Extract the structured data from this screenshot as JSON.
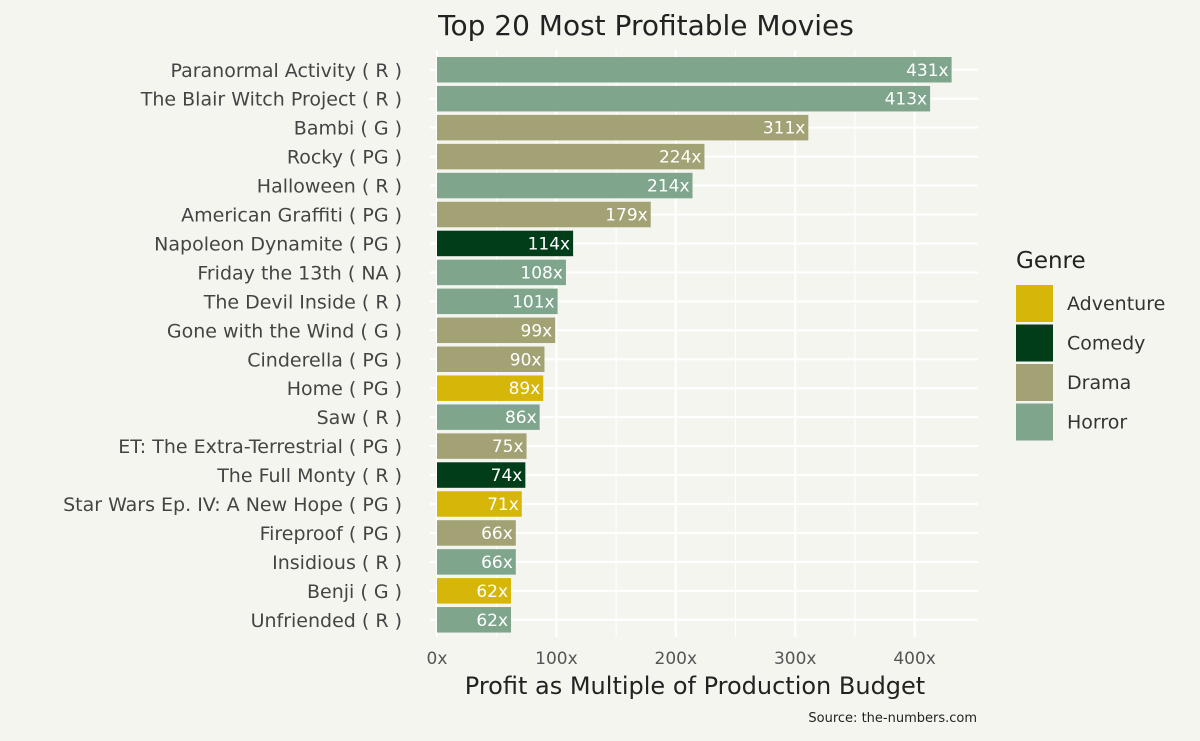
{
  "chart_data": {
    "type": "bar",
    "orientation": "horizontal",
    "title": "Top 20 Most Profitable Movies",
    "xlabel": "Profit as Multiple of Production Budget",
    "ylabel": "",
    "caption": "Source: the-numbers.com",
    "xlim": [
      0,
      450
    ],
    "x_ticks": [
      0,
      100,
      200,
      300,
      400
    ],
    "x_tick_labels": [
      "0x",
      "100x",
      "200x",
      "300x",
      "400x"
    ],
    "grid": true,
    "legend": {
      "title": "Genre",
      "placement": "right",
      "entries": [
        {
          "name": "Adventure",
          "color": "#d7b60a"
        },
        {
          "name": "Comedy",
          "color": "#003d18"
        },
        {
          "name": "Drama",
          "color": "#a2a275"
        },
        {
          "name": "Horror",
          "color": "#7fa68c"
        }
      ]
    },
    "bars": [
      {
        "label": "Paranormal Activity ( R )",
        "value": 431,
        "value_label": "431x",
        "genre": "Horror"
      },
      {
        "label": "The Blair Witch Project ( R )",
        "value": 413,
        "value_label": "413x",
        "genre": "Horror"
      },
      {
        "label": "Bambi ( G )",
        "value": 311,
        "value_label": "311x",
        "genre": "Drama"
      },
      {
        "label": "Rocky ( PG )",
        "value": 224,
        "value_label": "224x",
        "genre": "Drama"
      },
      {
        "label": "Halloween ( R )",
        "value": 214,
        "value_label": "214x",
        "genre": "Horror"
      },
      {
        "label": "American Graffiti ( PG )",
        "value": 179,
        "value_label": "179x",
        "genre": "Drama"
      },
      {
        "label": "Napoleon Dynamite ( PG )",
        "value": 114,
        "value_label": "114x",
        "genre": "Comedy"
      },
      {
        "label": "Friday the 13th ( NA )",
        "value": 108,
        "value_label": "108x",
        "genre": "Horror"
      },
      {
        "label": "The Devil Inside ( R )",
        "value": 101,
        "value_label": "101x",
        "genre": "Horror"
      },
      {
        "label": "Gone with the Wind ( G )",
        "value": 99,
        "value_label": "99x",
        "genre": "Drama"
      },
      {
        "label": "Cinderella ( PG )",
        "value": 90,
        "value_label": "90x",
        "genre": "Drama"
      },
      {
        "label": "Home ( PG )",
        "value": 89,
        "value_label": "89x",
        "genre": "Adventure"
      },
      {
        "label": "Saw ( R )",
        "value": 86,
        "value_label": "86x",
        "genre": "Horror"
      },
      {
        "label": "ET: The Extra-Terrestrial ( PG )",
        "value": 75,
        "value_label": "75x",
        "genre": "Drama"
      },
      {
        "label": "The Full Monty ( R )",
        "value": 74,
        "value_label": "74x",
        "genre": "Comedy"
      },
      {
        "label": "Star Wars Ep. IV: A New Hope ( PG )",
        "value": 71,
        "value_label": "71x",
        "genre": "Adventure"
      },
      {
        "label": "Fireproof ( PG )",
        "value": 66,
        "value_label": "66x",
        "genre": "Drama"
      },
      {
        "label": "Insidious ( R )",
        "value": 66,
        "value_label": "66x",
        "genre": "Horror"
      },
      {
        "label": "Benji ( G )",
        "value": 62,
        "value_label": "62x",
        "genre": "Adventure"
      },
      {
        "label": "Unfriended ( R )",
        "value": 62,
        "value_label": "62x",
        "genre": "Horror"
      }
    ]
  }
}
